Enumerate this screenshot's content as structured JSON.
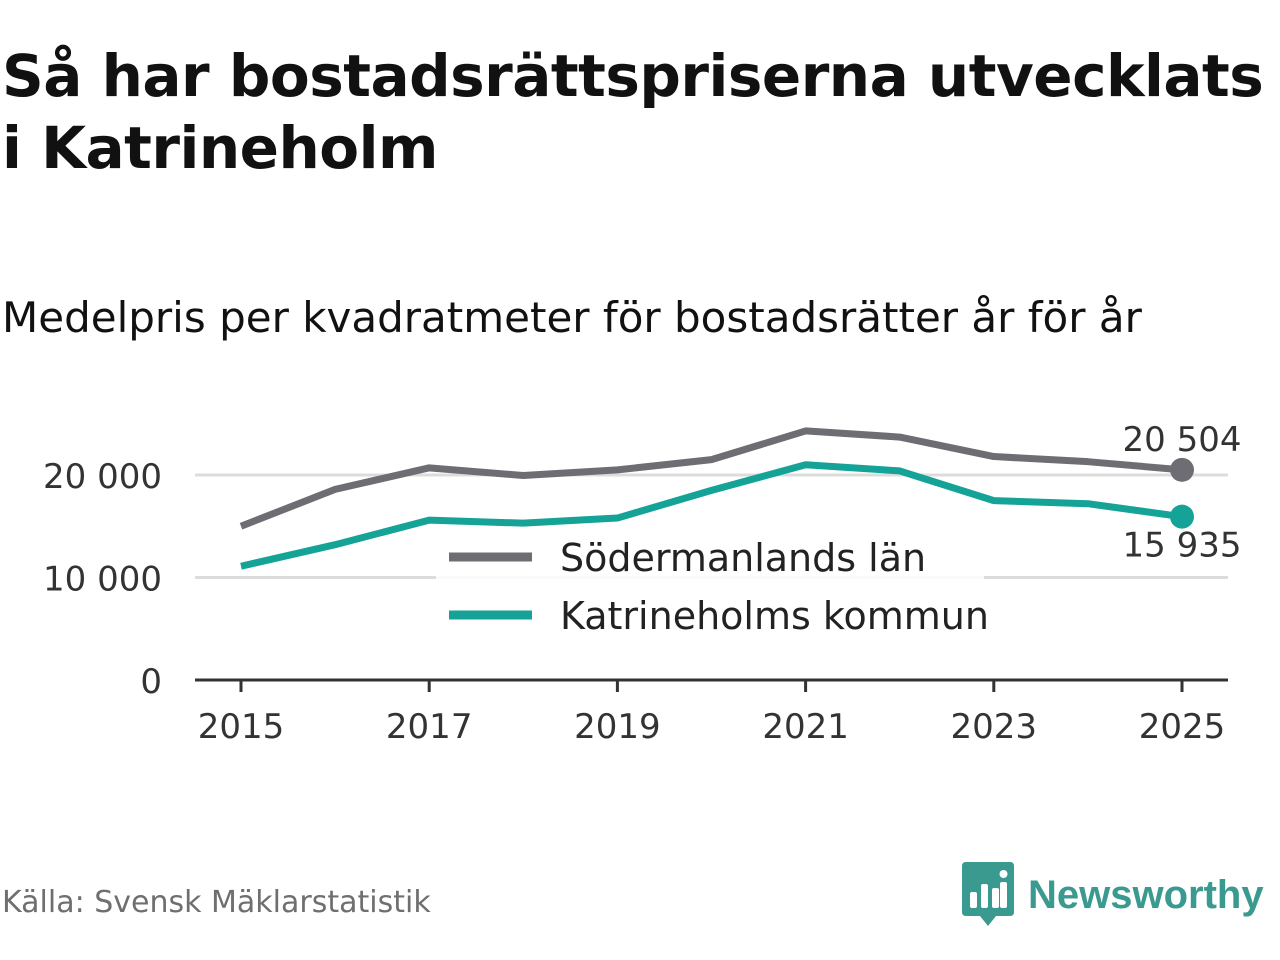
{
  "header": {
    "title": "Så har bostadsrättspriserna utvecklats i Katrineholm",
    "subtitle": "Medelpris per kvadratmeter för bostadsrätter år för år"
  },
  "footer": {
    "source": "Källa: Svensk Mäklarstatistik",
    "brand": "Newsworthy",
    "brand_color": "#3a9a8f"
  },
  "chart_data": {
    "type": "line",
    "title": "Så har bostadsrättspriserna utvecklats i Katrineholm",
    "subtitle": "Medelpris per kvadratmeter för bostadsrätter år för år",
    "xlabel": "",
    "ylabel": "",
    "x": [
      2015,
      2016,
      2017,
      2018,
      2019,
      2020,
      2021,
      2022,
      2023,
      2024,
      2025
    ],
    "xlim": [
      2015,
      2025
    ],
    "ylim": [
      0,
      20000
    ],
    "x_ticks": [
      2015,
      2017,
      2019,
      2021,
      2023,
      2025
    ],
    "x_tick_labels": [
      "2015",
      "2017",
      "2019",
      "2021",
      "2023",
      "2025"
    ],
    "y_ticks": [
      0,
      10000,
      20000
    ],
    "y_tick_labels": [
      "0",
      "10 000",
      "20 000"
    ],
    "grid": true,
    "legend_position": "center",
    "series": [
      {
        "name": "Södermanlands län",
        "color": "#6e6d73",
        "values": [
          15000,
          18600,
          20700,
          19950,
          20500,
          21500,
          24300,
          23700,
          21800,
          21300,
          20504
        ],
        "end_label": "20 504"
      },
      {
        "name": "Katrineholms kommun",
        "color": "#14a396",
        "values": [
          11100,
          13200,
          15600,
          15300,
          15800,
          18500,
          21000,
          20400,
          17500,
          17200,
          15935
        ],
        "end_label": "15 935"
      }
    ]
  }
}
